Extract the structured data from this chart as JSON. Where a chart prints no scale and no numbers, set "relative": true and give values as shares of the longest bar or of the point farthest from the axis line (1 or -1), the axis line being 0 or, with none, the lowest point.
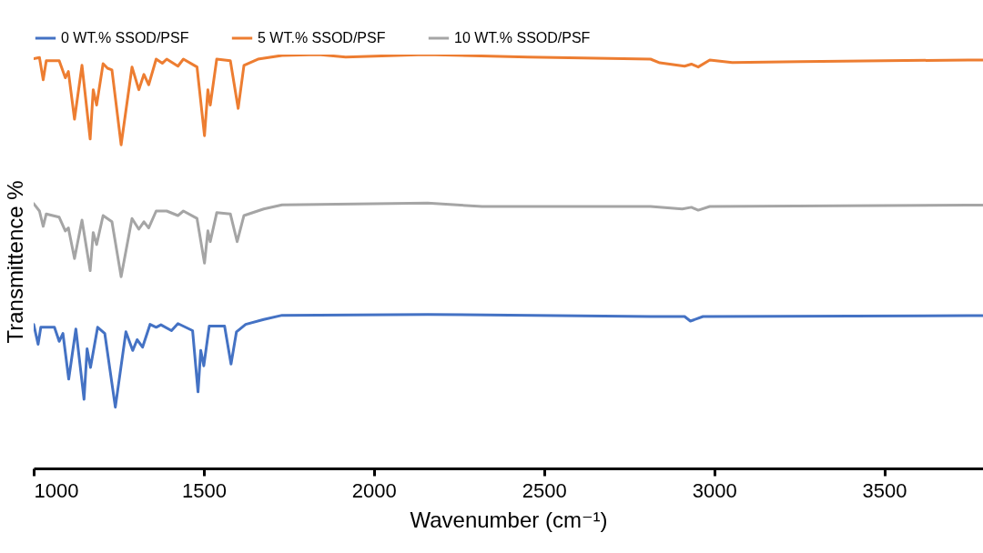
{
  "chart_data": {
    "type": "line",
    "relative": true,
    "xlabel": "Wavenumber (cm⁻¹)",
    "ylabel": "Transmittence %",
    "xlim": [
      1000,
      3790
    ],
    "xticks": [
      1000,
      1500,
      2000,
      2500,
      3000,
      3500
    ],
    "legend": "top",
    "grid": false,
    "series": [
      {
        "name": "0 WT.% SSOD/PSF",
        "color": "#4472c4",
        "x": [
          1000,
          1013,
          1021,
          1061,
          1075,
          1086,
          1103,
          1124,
          1148,
          1157,
          1167,
          1188,
          1209,
          1240,
          1271,
          1291,
          1304,
          1320,
          1342,
          1360,
          1374,
          1405,
          1424,
          1467,
          1483,
          1491,
          1500,
          1516,
          1561,
          1580,
          1596,
          1623,
          1676,
          1730,
          2158,
          2813,
          2913,
          2930,
          2967,
          3746,
          3789
        ],
        "values": [
          0.348,
          0.3,
          0.341,
          0.341,
          0.307,
          0.326,
          0.216,
          0.337,
          0.167,
          0.289,
          0.244,
          0.341,
          0.326,
          0.148,
          0.33,
          0.285,
          0.311,
          0.293,
          0.348,
          0.341,
          0.347,
          0.333,
          0.35,
          0.333,
          0.185,
          0.285,
          0.248,
          0.344,
          0.344,
          0.252,
          0.33,
          0.348,
          0.36,
          0.37,
          0.372,
          0.367,
          0.367,
          0.356,
          0.367,
          0.369,
          0.369
        ]
      },
      {
        "name": "5 WT.% SSOD/PSF",
        "color": "#ed7d31",
        "x": [
          1000,
          1017,
          1028,
          1037,
          1075,
          1093,
          1102,
          1120,
          1142,
          1166,
          1175,
          1185,
          1204,
          1217,
          1230,
          1257,
          1289,
          1309,
          1324,
          1338,
          1360,
          1378,
          1391,
          1424,
          1440,
          1480,
          1502,
          1512,
          1519,
          1538,
          1578,
          1601,
          1618,
          1659,
          1730,
          1837,
          1917,
          2151,
          2452,
          2813,
          2840,
          2913,
          2933,
          2953,
          2987,
          3053,
          3254,
          3746,
          3789
        ],
        "values": [
          0.99,
          0.993,
          0.939,
          0.985,
          0.985,
          0.944,
          0.959,
          0.844,
          0.974,
          0.796,
          0.915,
          0.878,
          0.978,
          0.967,
          0.963,
          0.782,
          0.97,
          0.915,
          0.952,
          0.927,
          0.989,
          0.979,
          0.989,
          0.972,
          0.989,
          0.97,
          0.804,
          0.915,
          0.878,
          0.989,
          0.985,
          0.87,
          0.974,
          0.989,
          0.998,
          1.0,
          0.994,
          1.0,
          0.994,
          0.989,
          0.98,
          0.972,
          0.977,
          0.97,
          0.987,
          0.981,
          0.983,
          0.987,
          0.987
        ]
      },
      {
        "name": "10 WT.% SSOD/PSF",
        "color": "#a5a5a5",
        "x": [
          1000,
          1017,
          1028,
          1037,
          1075,
          1093,
          1102,
          1120,
          1142,
          1166,
          1175,
          1185,
          1204,
          1230,
          1257,
          1289,
          1309,
          1324,
          1338,
          1360,
          1391,
          1424,
          1440,
          1480,
          1502,
          1512,
          1519,
          1538,
          1578,
          1598,
          1618,
          1676,
          1730,
          2158,
          2318,
          2813,
          2906,
          2933,
          2953,
          2987,
          3746,
          3789
        ],
        "values": [
          0.64,
          0.622,
          0.585,
          0.615,
          0.607,
          0.574,
          0.581,
          0.507,
          0.6,
          0.478,
          0.57,
          0.541,
          0.611,
          0.596,
          0.463,
          0.604,
          0.578,
          0.596,
          0.581,
          0.622,
          0.622,
          0.611,
          0.622,
          0.604,
          0.496,
          0.574,
          0.548,
          0.618,
          0.615,
          0.548,
          0.611,
          0.627,
          0.637,
          0.641,
          0.633,
          0.633,
          0.627,
          0.631,
          0.624,
          0.633,
          0.636,
          0.636
        ]
      }
    ]
  }
}
